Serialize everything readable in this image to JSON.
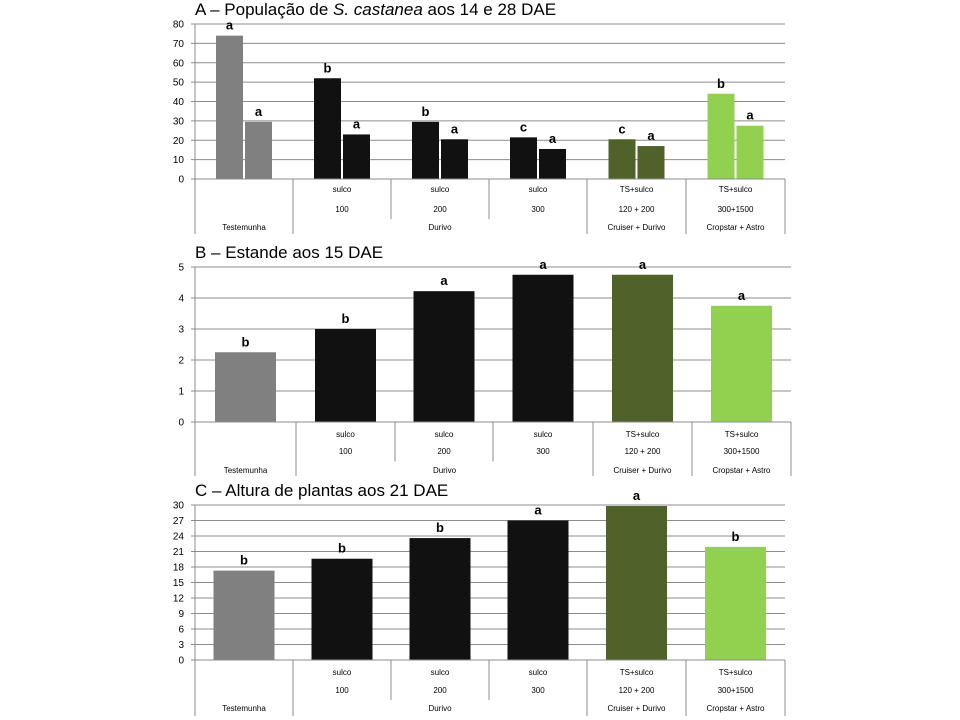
{
  "chart_data": [
    {
      "type": "bar",
      "title_parts": [
        "A – População de ",
        "S. castanea",
        " aos 14 e 28 DAE"
      ],
      "ylim": [
        0,
        80
      ],
      "yticks": [
        "0",
        "10",
        "20",
        "30",
        "40",
        "50",
        "60",
        "70",
        "80"
      ],
      "series_names": [
        "",
        ""
      ],
      "groups": [
        {
          "values": [
            74,
            29.5
          ],
          "letters": [
            "a",
            "a"
          ],
          "color": "#808080"
        },
        {
          "values": [
            52,
            23
          ],
          "letters": [
            "b",
            "a"
          ],
          "color": "#111111"
        },
        {
          "values": [
            29.5,
            20.5
          ],
          "letters": [
            "b",
            "a"
          ],
          "color": "#111111"
        },
        {
          "values": [
            21.5,
            15.5
          ],
          "letters": [
            "c",
            "a"
          ],
          "color": "#111111"
        },
        {
          "values": [
            20.5,
            17
          ],
          "letters": [
            "c",
            "a"
          ],
          "color": "#4f622a"
        },
        {
          "values": [
            44,
            27.5
          ],
          "letters": [
            "b",
            "a"
          ],
          "color": "#92d050"
        }
      ],
      "row1": [
        "",
        "sulco",
        "sulco",
        "sulco",
        "TS+sulco",
        "TS+sulco"
      ],
      "row2": [
        "",
        "100",
        "200",
        "300",
        "120 + 200",
        "300+1500"
      ],
      "row3": [
        {
          "label": "Testemunha",
          "span": 1
        },
        {
          "label": "Durivo",
          "span": 3
        },
        {
          "label": "Cruiser + Durivo",
          "span": 1
        },
        {
          "label": "Cropstar + Astro",
          "span": 1
        }
      ]
    },
    {
      "type": "bar",
      "title_parts": [
        "B – Estande aos 15 DAE"
      ],
      "ylim": [
        0,
        5
      ],
      "yticks": [
        "0",
        "1",
        "2",
        "3",
        "4",
        "5"
      ],
      "groups": [
        {
          "values": [
            2.25
          ],
          "letters": [
            "b"
          ],
          "color": "#808080"
        },
        {
          "values": [
            3.0
          ],
          "letters": [
            "b"
          ],
          "color": "#111111"
        },
        {
          "values": [
            4.22
          ],
          "letters": [
            "a"
          ],
          "color": "#111111"
        },
        {
          "values": [
            4.75
          ],
          "letters": [
            "a"
          ],
          "color": "#111111"
        },
        {
          "values": [
            4.75
          ],
          "letters": [
            "a"
          ],
          "color": "#4f622a"
        },
        {
          "values": [
            3.75
          ],
          "letters": [
            "a"
          ],
          "color": "#92d050"
        }
      ],
      "row1": [
        "",
        "sulco",
        "sulco",
        "sulco",
        "TS+sulco",
        "TS+sulco"
      ],
      "row2": [
        "",
        "100",
        "200",
        "300",
        "120 + 200",
        "300+1500"
      ],
      "row3": [
        {
          "label": "Testemunha",
          "span": 1
        },
        {
          "label": "Durivo",
          "span": 3
        },
        {
          "label": "Cruiser + Durivo",
          "span": 1
        },
        {
          "label": "Cropstar + Astro",
          "span": 1
        }
      ]
    },
    {
      "type": "bar",
      "title_parts": [
        "C – Altura de plantas aos 21 DAE"
      ],
      "ylim": [
        0,
        30
      ],
      "yticks": [
        "0",
        "3",
        "6",
        "9",
        "12",
        "15",
        "18",
        "21",
        "24",
        "27",
        "30"
      ],
      "groups": [
        {
          "values": [
            17.3
          ],
          "letters": [
            "b"
          ],
          "color": "#808080"
        },
        {
          "values": [
            19.6
          ],
          "letters": [
            "b"
          ],
          "color": "#111111"
        },
        {
          "values": [
            23.6
          ],
          "letters": [
            "b"
          ],
          "color": "#111111"
        },
        {
          "values": [
            27.0
          ],
          "letters": [
            "a"
          ],
          "color": "#111111"
        },
        {
          "values": [
            29.8
          ],
          "letters": [
            "a"
          ],
          "color": "#4f622a"
        },
        {
          "values": [
            21.9
          ],
          "letters": [
            "b"
          ],
          "color": "#92d050"
        }
      ],
      "row1": [
        "",
        "sulco",
        "sulco",
        "sulco",
        "TS+sulco",
        "TS+sulco"
      ],
      "row2": [
        "",
        "100",
        "200",
        "300",
        "120 + 200",
        "300+1500"
      ],
      "row3": [
        {
          "label": "Testemunha",
          "span": 1
        },
        {
          "label": "Durivo",
          "span": 3
        },
        {
          "label": "Cruiser + Durivo",
          "span": 1
        },
        {
          "label": "Cropstar + Astro",
          "span": 1
        }
      ]
    }
  ]
}
